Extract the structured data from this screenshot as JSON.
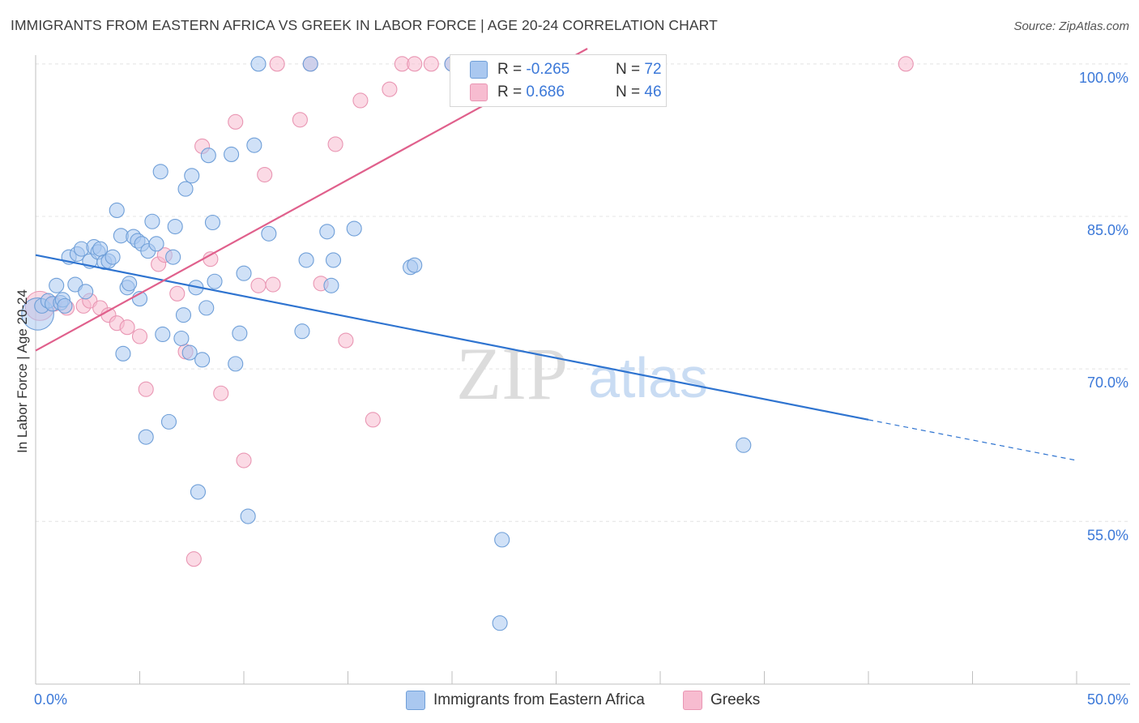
{
  "header": {
    "title": "IMMIGRANTS FROM EASTERN AFRICA VS GREEK IN LABOR FORCE | AGE 20-24 CORRELATION CHART",
    "source": "Source: ZipAtlas.com"
  },
  "watermark": {
    "zip": "ZIP",
    "atlas": "atlas"
  },
  "colors": {
    "blue_fill": "#aac8f0",
    "blue_stroke": "#6f9fd8",
    "blue_line": "#2f74d0",
    "pink_fill": "#f7bcd0",
    "pink_stroke": "#e996b3",
    "pink_line": "#e0608c",
    "tick_label": "#3b78d8",
    "grid": "#e4e4e4"
  },
  "legend_top": [
    {
      "r_label": "R = ",
      "r_value": "-0.265",
      "n_label": "N = ",
      "n_value": "72"
    },
    {
      "r_label": "R = ",
      "r_value": "0.686",
      "n_label": "N = ",
      "n_value": "46"
    }
  ],
  "legend_bottom": [
    "Immigrants from Eastern Africa",
    "Greeks"
  ],
  "chart_data": {
    "type": "scatter",
    "title": "IMMIGRANTS FROM EASTERN AFRICA VS GREEK IN LABOR FORCE | AGE 20-24 CORRELATION CHART",
    "xlabel": "",
    "ylabel": "In Labor Force | Age 20-24",
    "xlim": [
      0,
      50
    ],
    "ylim": [
      39,
      101.5
    ],
    "x_tick_labels": [
      {
        "value": 0,
        "label": "0.0%"
      },
      {
        "value": 50,
        "label": "50.0%"
      }
    ],
    "y_tick_labels": [
      {
        "value": 100,
        "label": "100.0%"
      },
      {
        "value": 85,
        "label": "85.0%"
      },
      {
        "value": 70,
        "label": "70.0%"
      },
      {
        "value": 55,
        "label": "55.0%"
      }
    ],
    "grid": "horizontal dashed",
    "legend_position": "top-center",
    "series": [
      {
        "name": "Immigrants from Eastern Africa",
        "color": "#aac8f0",
        "R": -0.265,
        "N": 72,
        "trend": {
          "x0": 0,
          "y0": 81.2,
          "x1": 40,
          "y1": 65.0,
          "dashed_to_x": 50,
          "dashed_to_y": 61.0
        },
        "points": [
          [
            0.1,
            75.4,
            22
          ],
          [
            0.3,
            76.2,
            10
          ],
          [
            0.6,
            76.7,
            10
          ],
          [
            0.8,
            76.4,
            10
          ],
          [
            1.0,
            78.2,
            10
          ],
          [
            1.2,
            76.5,
            10
          ],
          [
            1.3,
            76.8,
            10
          ],
          [
            1.4,
            76.2,
            10
          ],
          [
            1.6,
            81.0,
            10
          ],
          [
            1.9,
            78.3,
            10
          ],
          [
            2.0,
            81.3,
            10
          ],
          [
            2.2,
            81.8,
            10
          ],
          [
            2.4,
            77.6,
            10
          ],
          [
            2.6,
            80.6,
            10
          ],
          [
            2.8,
            82.0,
            10
          ],
          [
            3.0,
            81.5,
            10
          ],
          [
            3.1,
            81.8,
            10
          ],
          [
            3.3,
            80.5,
            10
          ],
          [
            3.5,
            80.6,
            10
          ],
          [
            3.7,
            81.0,
            10
          ],
          [
            3.9,
            85.6,
            10
          ],
          [
            4.1,
            83.1,
            10
          ],
          [
            4.2,
            71.5,
            10
          ],
          [
            4.4,
            78.0,
            10
          ],
          [
            4.5,
            78.4,
            10
          ],
          [
            4.7,
            83.0,
            10
          ],
          [
            4.9,
            82.6,
            10
          ],
          [
            5.0,
            76.9,
            10
          ],
          [
            5.1,
            82.3,
            10
          ],
          [
            5.3,
            63.3,
            10
          ],
          [
            5.4,
            81.6,
            10
          ],
          [
            5.6,
            84.5,
            10
          ],
          [
            5.8,
            82.3,
            10
          ],
          [
            6.0,
            89.4,
            10
          ],
          [
            6.1,
            73.4,
            10
          ],
          [
            6.4,
            64.8,
            10
          ],
          [
            6.6,
            81.0,
            10
          ],
          [
            6.7,
            84.0,
            10
          ],
          [
            7.0,
            73.0,
            10
          ],
          [
            7.1,
            75.3,
            10
          ],
          [
            7.2,
            87.7,
            10
          ],
          [
            7.4,
            71.6,
            10
          ],
          [
            7.5,
            89.0,
            10
          ],
          [
            7.7,
            78.0,
            10
          ],
          [
            7.8,
            57.9,
            10
          ],
          [
            8.0,
            70.9,
            10
          ],
          [
            8.2,
            76.0,
            10
          ],
          [
            8.3,
            91.0,
            10
          ],
          [
            8.5,
            84.4,
            10
          ],
          [
            8.6,
            78.6,
            10
          ],
          [
            9.4,
            91.1,
            10
          ],
          [
            9.6,
            70.5,
            10
          ],
          [
            9.8,
            73.5,
            10
          ],
          [
            10.0,
            79.4,
            10
          ],
          [
            10.2,
            55.5,
            10
          ],
          [
            10.5,
            92.0,
            10
          ],
          [
            10.7,
            100.0,
            10
          ],
          [
            11.2,
            83.3,
            10
          ],
          [
            12.8,
            73.7,
            10
          ],
          [
            13.0,
            80.7,
            10
          ],
          [
            13.2,
            100.0,
            10
          ],
          [
            14.0,
            83.5,
            10
          ],
          [
            14.2,
            78.2,
            10
          ],
          [
            14.3,
            80.7,
            10
          ],
          [
            15.3,
            83.8,
            10
          ],
          [
            18.0,
            80.0,
            10
          ],
          [
            18.2,
            80.2,
            10
          ],
          [
            20.0,
            100.0,
            10
          ],
          [
            22.3,
            45.0,
            10
          ],
          [
            22.4,
            53.2,
            10
          ],
          [
            34.0,
            62.5,
            10
          ],
          [
            22.0,
            100.0,
            10
          ]
        ]
      },
      {
        "name": "Greeks",
        "color": "#f7bcd0",
        "R": 0.686,
        "N": 46,
        "trend": {
          "x0": 0,
          "y0": 71.8,
          "x1": 26.5,
          "y1": 101.5
        },
        "points": [
          [
            0.2,
            76.2,
            20
          ],
          [
            0.9,
            76.4,
            10
          ],
          [
            1.5,
            76.0,
            10
          ],
          [
            2.3,
            76.2,
            10
          ],
          [
            2.6,
            76.7,
            10
          ],
          [
            3.1,
            76.0,
            10
          ],
          [
            3.5,
            75.3,
            10
          ],
          [
            3.9,
            74.5,
            10
          ],
          [
            4.4,
            74.1,
            10
          ],
          [
            5.0,
            73.2,
            10
          ],
          [
            5.3,
            68.0,
            10
          ],
          [
            5.9,
            80.3,
            10
          ],
          [
            6.2,
            81.2,
            10
          ],
          [
            6.8,
            77.4,
            10
          ],
          [
            7.2,
            71.7,
            10
          ],
          [
            7.6,
            51.3,
            10
          ],
          [
            8.0,
            91.9,
            10
          ],
          [
            8.4,
            80.8,
            10
          ],
          [
            8.9,
            67.6,
            10
          ],
          [
            9.6,
            94.3,
            10
          ],
          [
            10.0,
            61.0,
            10
          ],
          [
            10.7,
            78.2,
            10
          ],
          [
            11.0,
            89.1,
            10
          ],
          [
            11.4,
            78.3,
            10
          ],
          [
            11.6,
            100.0,
            10
          ],
          [
            12.7,
            94.5,
            10
          ],
          [
            13.2,
            100.0,
            10
          ],
          [
            13.7,
            78.4,
            10
          ],
          [
            14.4,
            92.1,
            10
          ],
          [
            14.9,
            72.8,
            10
          ],
          [
            15.6,
            96.4,
            10
          ],
          [
            16.2,
            65.0,
            10
          ],
          [
            17.0,
            97.5,
            10
          ],
          [
            17.6,
            100.0,
            10
          ],
          [
            18.2,
            100.0,
            10
          ],
          [
            19.0,
            100.0,
            10
          ],
          [
            20.0,
            100.0,
            10
          ],
          [
            21.0,
            100.0,
            10
          ],
          [
            22.0,
            100.0,
            10
          ],
          [
            23.5,
            100.0,
            10
          ],
          [
            24.5,
            100.0,
            10
          ],
          [
            25.5,
            100.0,
            10
          ],
          [
            26.0,
            100.0,
            10
          ],
          [
            41.8,
            100.0,
            10
          ],
          [
            25.0,
            100.0,
            10
          ],
          [
            23.0,
            100.0,
            10
          ]
        ]
      }
    ]
  }
}
